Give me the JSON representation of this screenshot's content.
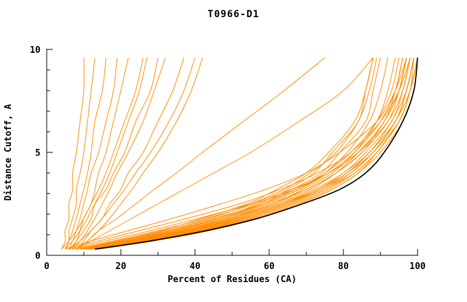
{
  "title": "T0966-D1",
  "chart_data": {
    "type": "line",
    "title": "T0966-D1",
    "xlabel": "Percent of Residues (CA)",
    "ylabel": "Distance Cutoff, A",
    "xlim": [
      0,
      100
    ],
    "ylim": [
      0,
      10
    ],
    "x_major_ticks": [
      0,
      20,
      40,
      60,
      80,
      100
    ],
    "x_minor_step": 10,
    "y_major_ticks": [
      0,
      5,
      10
    ],
    "y_minor_step": 1,
    "grid": false,
    "legend_position": "none",
    "colors": {
      "model_curves": "#ff8c00",
      "reference_curve": "#000000",
      "axis": "#000000",
      "background": "#ffffff"
    },
    "y_grid": [
      0.3,
      0.7,
      1.2,
      1.8,
      2.5,
      3.2,
      4.0,
      5.0,
      6.5,
      8.0,
      9.6
    ],
    "reference_curve_x": [
      13,
      28,
      43,
      57,
      69,
      79,
      86,
      91,
      96,
      99,
      100
    ],
    "model_curves_x": [
      [
        4,
        5,
        5,
        6,
        6,
        7,
        7,
        8,
        9,
        10,
        10
      ],
      [
        5,
        6,
        6,
        7,
        8,
        8,
        9,
        10,
        11,
        12,
        13
      ],
      [
        5,
        6,
        7,
        8,
        9,
        10,
        11,
        12,
        13,
        15,
        16
      ],
      [
        6,
        7,
        8,
        9,
        10,
        11,
        12,
        14,
        16,
        18,
        19
      ],
      [
        6,
        8,
        9,
        10,
        12,
        13,
        14,
        16,
        18,
        20,
        22
      ],
      [
        7,
        8,
        10,
        12,
        13,
        15,
        17,
        19,
        22,
        25,
        27
      ],
      [
        7,
        9,
        11,
        13,
        15,
        17,
        19,
        22,
        26,
        29,
        32
      ],
      [
        8,
        10,
        12,
        15,
        17,
        20,
        22,
        26,
        30,
        34,
        37
      ],
      [
        8,
        11,
        14,
        17,
        20,
        23,
        26,
        30,
        35,
        39,
        42
      ],
      [
        5,
        7,
        9,
        11,
        13,
        16,
        18,
        21,
        24,
        28,
        30
      ],
      [
        4,
        6,
        8,
        10,
        12,
        14,
        16,
        18,
        21,
        24,
        26
      ],
      [
        6,
        9,
        12,
        15,
        18,
        21,
        24,
        28,
        33,
        37,
        40
      ],
      [
        8,
        11,
        14,
        19,
        24,
        29,
        35,
        42,
        53,
        64,
        75
      ],
      [
        8,
        12,
        17,
        23,
        30,
        37,
        45,
        55,
        68,
        80,
        88
      ],
      [
        10,
        22,
        34,
        46,
        57,
        65,
        72,
        77,
        84,
        86,
        88
      ],
      [
        10,
        22,
        35,
        47,
        58,
        66,
        74,
        79,
        86,
        88,
        90
      ],
      [
        10,
        23,
        36,
        48,
        59,
        68,
        75,
        81,
        87,
        90,
        92
      ],
      [
        11,
        23,
        36,
        49,
        61,
        69,
        77,
        83,
        89,
        92,
        94
      ],
      [
        11,
        24,
        37,
        50,
        62,
        71,
        78,
        84,
        91,
        94,
        96
      ],
      [
        11,
        24,
        38,
        51,
        63,
        72,
        80,
        86,
        93,
        96,
        98
      ],
      [
        11,
        24,
        38,
        52,
        64,
        73,
        81,
        87,
        94,
        97,
        99
      ],
      [
        11,
        25,
        39,
        52,
        64,
        74,
        81,
        88,
        94,
        98,
        100
      ],
      [
        6,
        14,
        25,
        38,
        52,
        63,
        73,
        82,
        90,
        95,
        98
      ],
      [
        7,
        16,
        28,
        41,
        55,
        66,
        76,
        84,
        92,
        96,
        98
      ],
      [
        8,
        18,
        30,
        43,
        56,
        67,
        76,
        84,
        91,
        95,
        97
      ],
      [
        5,
        12,
        22,
        34,
        47,
        59,
        70,
        79,
        89,
        94,
        97
      ],
      [
        12,
        26,
        40,
        53,
        65,
        74,
        82,
        88,
        94,
        97,
        99
      ],
      [
        12,
        27,
        41,
        54,
        66,
        75,
        82,
        88,
        95,
        98,
        100
      ],
      [
        11,
        25,
        40,
        53,
        65,
        74,
        81,
        87,
        94,
        97,
        99
      ],
      [
        9,
        20,
        32,
        44,
        55,
        64,
        71,
        78,
        84,
        87,
        89
      ],
      [
        8,
        19,
        31,
        42,
        54,
        62,
        70,
        76,
        83,
        86,
        88
      ],
      [
        10,
        23,
        37,
        50,
        61,
        70,
        78,
        85,
        91,
        95,
        97
      ],
      [
        11,
        25,
        40,
        54,
        66,
        75,
        83,
        89,
        95,
        98,
        99
      ],
      [
        9,
        21,
        34,
        47,
        59,
        68,
        76,
        83,
        90,
        94,
        96
      ],
      [
        12,
        25,
        38,
        51,
        63,
        73,
        80,
        87,
        93,
        97,
        99
      ],
      [
        10,
        22,
        36,
        49,
        60,
        70,
        78,
        85,
        92,
        95,
        97
      ],
      [
        11,
        26,
        41,
        55,
        67,
        76,
        83,
        89,
        95,
        98,
        100
      ],
      [
        9,
        20,
        33,
        45,
        58,
        67,
        75,
        82,
        89,
        93,
        95
      ],
      [
        10,
        24,
        39,
        52,
        64,
        73,
        81,
        87,
        94,
        97,
        99
      ],
      [
        12,
        27,
        42,
        56,
        68,
        77,
        84,
        90,
        96,
        99,
        100
      ],
      [
        14,
        29,
        44,
        57,
        68,
        77,
        84,
        89,
        95,
        98,
        100
      ]
    ]
  }
}
